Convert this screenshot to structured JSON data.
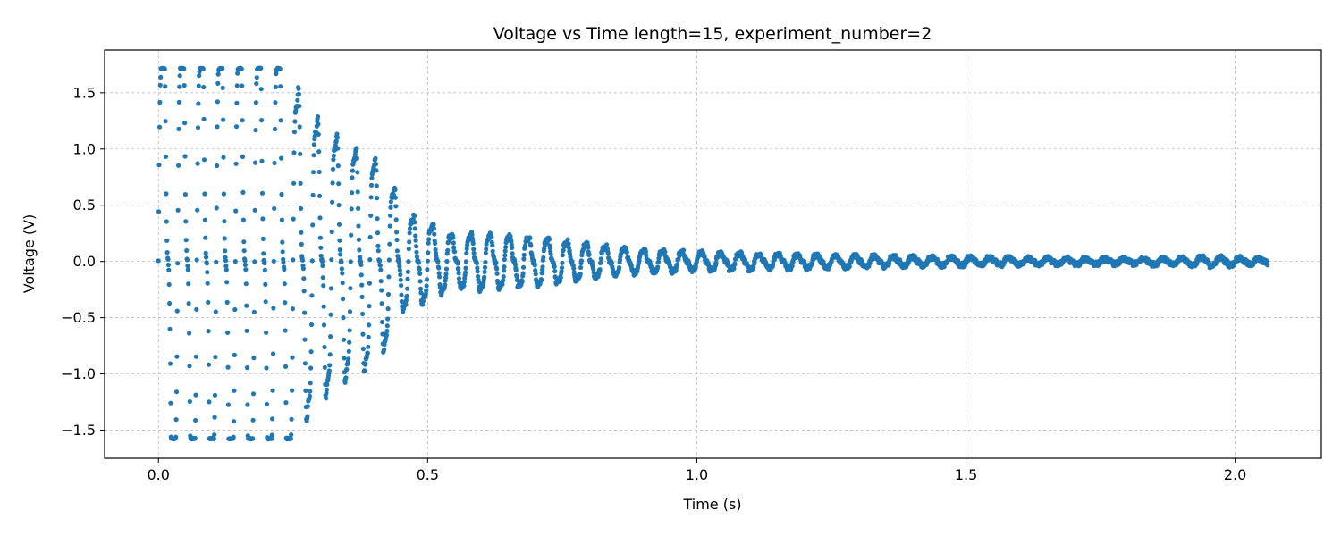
{
  "chart_data": {
    "type": "scatter",
    "title": "Voltage vs Time length=15, experiment_number=2",
    "xlabel": "Time (s)",
    "ylabel": "Voltage (V)",
    "xlim": [
      -0.1,
      2.16
    ],
    "ylim": [
      -1.75,
      1.88
    ],
    "xticks": [
      0.0,
      0.5,
      1.0,
      1.5,
      2.0
    ],
    "xtick_labels": [
      "0.0",
      "0.5",
      "1.0",
      "1.5",
      "2.0"
    ],
    "yticks": [
      -1.5,
      -1.0,
      -0.5,
      0.0,
      0.5,
      1.0,
      1.5
    ],
    "ytick_labels": [
      "−1.5",
      "−1.0",
      "−0.5",
      "0.0",
      "0.5",
      "1.0",
      "1.5"
    ],
    "grid": true,
    "marker_color": "#1f77b4",
    "series": [
      {
        "x_start": 0.0,
        "x_end": 2.06,
        "points": 3000,
        "clip_max": 1.72,
        "clip_min": -1.58,
        "envelope_peaks": [
          [
            0.0,
            1.72
          ],
          [
            0.05,
            1.72
          ],
          [
            0.1,
            1.72
          ],
          [
            0.15,
            1.72
          ],
          [
            0.2,
            1.6
          ],
          [
            0.25,
            1.3
          ],
          [
            0.3,
            1.0
          ],
          [
            0.35,
            0.85
          ],
          [
            0.4,
            0.75
          ],
          [
            0.45,
            0.45
          ],
          [
            0.5,
            0.35
          ],
          [
            0.55,
            0.23
          ],
          [
            0.6,
            0.25
          ],
          [
            0.7,
            0.22
          ],
          [
            0.8,
            0.15
          ],
          [
            0.9,
            0.1
          ],
          [
            1.0,
            0.08
          ],
          [
            1.2,
            0.06
          ],
          [
            1.4,
            0.04
          ],
          [
            1.6,
            0.03
          ],
          [
            1.8,
            0.02
          ],
          [
            1.95,
            0.04
          ],
          [
            2.06,
            0.02
          ]
        ],
        "oscillation_hz": 28
      }
    ]
  }
}
